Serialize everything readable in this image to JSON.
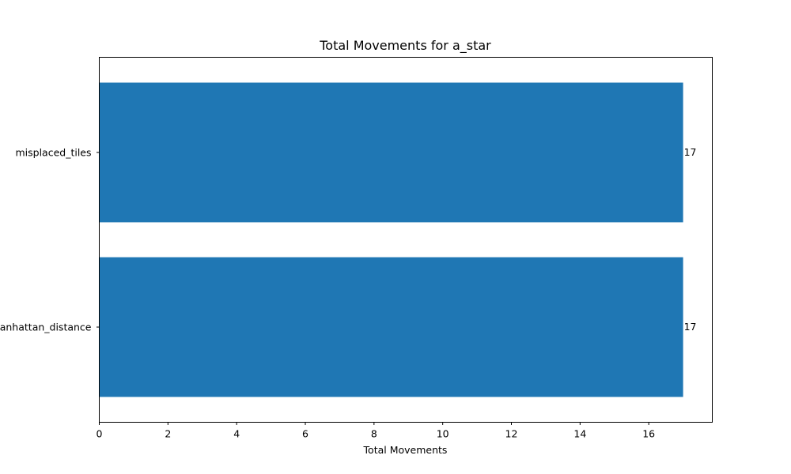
{
  "chart_data": {
    "type": "bar",
    "orientation": "horizontal",
    "title": "Total Movements for a_star",
    "xlabel": "Total Movements",
    "ylabel": "",
    "categories": [
      "manhattan_distance",
      "misplaced_tiles"
    ],
    "values": [
      17,
      17
    ],
    "xlim": [
      0,
      17.85
    ],
    "xticks": [
      0,
      2,
      4,
      6,
      8,
      10,
      12,
      14,
      16
    ],
    "bar_color": "#1f77b4",
    "grid": false,
    "legend": "none"
  }
}
